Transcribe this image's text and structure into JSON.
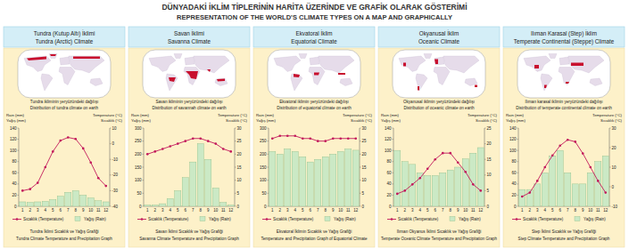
{
  "header": {
    "title_tr": "DÜNYADAKİ İKLİM TİPLERİNİN HARİTA ÜZERİNDE VE GRAFİK OLARAK GÖSTERİMİ",
    "title_en": "REPRESENTATION OF THE WORLD'S CLIMATE TYPES ON A MAP AND GRAPHICALLY"
  },
  "panels": [
    {
      "name_tr": "Tundra (Kutup Altı) İklimi",
      "name_en": "Tundra (Arctic) Climate",
      "map_caption_tr": "Tundra ikliminin yeryüzündeki dağılışı",
      "map_caption_en": "Distribution of tundra climate on earth"
    },
    {
      "name_tr": "Savan İklimi",
      "name_en": "Savanna Climate",
      "map_caption_tr": "Savan ikliminin yeryüzündeki dağılışı",
      "map_caption_en": "Distribution of savannah climate on earth"
    },
    {
      "name_tr": "Ekvatoral İklim",
      "name_en": "Equatorial Climate",
      "map_caption_tr": "Ekvatoral iklimin yeryüzündeki dağılışı",
      "map_caption_en": "Distribution of equatorial climate on earth"
    },
    {
      "name_tr": "Okyanusal İklim",
      "name_en": "Oceanic Climate",
      "map_caption_tr": "Okyanusal iklimin yeryüzündeki dağılışı",
      "map_caption_en": "Distribution of oceanic climate on earth"
    },
    {
      "name_tr": "Ilıman Karasal (Step) İklim",
      "name_en": "Temperate Continental (Steppe) Climate",
      "map_caption_tr": "Ilıman karasal iklimin yeryüzündeki dağılışı",
      "map_caption_en": "Distribution of temperate continental climate on earth"
    }
  ],
  "chart_data": [
    {
      "type": "bar",
      "title": "Tundra İklimi Sıcaklık ve Yağış Grafiği",
      "subtitle": "Tundra Climate Temperature and Precipitation Graph",
      "y_label": [
        "Rain (mm)",
        "Yağış (mm)"
      ],
      "y2_label": [
        "Temperature (°C)",
        "Sıcaklık (°C)"
      ],
      "categories": [
        "1",
        "2",
        "3",
        "4",
        "5",
        "6",
        "7",
        "8",
        "9",
        "10",
        "11",
        "12"
      ],
      "ylim": [
        0,
        140
      ],
      "yticks": [
        0,
        20,
        40,
        60,
        80,
        100,
        120,
        140
      ],
      "y2lim": [
        -40,
        10
      ],
      "y2ticks": [
        -40,
        -30,
        -20,
        -10,
        0,
        10
      ],
      "legend": "bottom",
      "series": [
        {
          "name": "Sıcaklık (Temperature)",
          "type": "line",
          "axis": "y2",
          "color": "#c2185b",
          "marker": "circle",
          "values": [
            -30,
            -29,
            -25,
            -15,
            -5,
            2,
            4,
            3,
            -3,
            -12,
            -22,
            -27
          ]
        },
        {
          "name": "Yağış (Rain)",
          "type": "bar",
          "color": "#cbe9c5",
          "values": [
            8,
            7,
            8,
            9,
            12,
            18,
            25,
            28,
            20,
            15,
            10,
            8
          ]
        }
      ]
    },
    {
      "type": "bar",
      "title": "Savan İklimi Sıcaklık ve Yağış Grafiği",
      "subtitle": "Savanna Climate Temperature and Precipitation Graph",
      "y_label": [
        "Rain (mm)",
        "Yağış (mm)"
      ],
      "y2_label": [
        "Temperature (°C)",
        "Sıcaklık (°C)"
      ],
      "categories": [
        "1",
        "2",
        "3",
        "4",
        "5",
        "6",
        "7",
        "8",
        "9",
        "10",
        "11",
        "12"
      ],
      "ylim": [
        0,
        300
      ],
      "yticks": [
        0,
        50,
        100,
        150,
        200,
        250,
        300
      ],
      "y2lim": [
        0,
        30
      ],
      "y2ticks": [
        0,
        5,
        10,
        15,
        20,
        25,
        30
      ],
      "legend": "bottom",
      "series": [
        {
          "name": "Sıcaklık (Temperature)",
          "type": "line",
          "axis": "y2",
          "color": "#c2185b",
          "marker": "circle",
          "values": [
            20,
            21,
            22,
            23,
            24,
            25,
            26,
            26,
            25,
            24,
            22,
            21
          ]
        },
        {
          "name": "Yağış (Rain)",
          "type": "bar",
          "color": "#cbe9c5",
          "values": [
            5,
            5,
            10,
            30,
            60,
            110,
            170,
            240,
            180,
            70,
            15,
            5
          ]
        }
      ]
    },
    {
      "type": "bar",
      "title": "Ekvatoral İklimin Sıcaklık ve Yağış Grafiği",
      "subtitle": "Temperature and Precipitation Graph of Equatorial Climate",
      "y_label": [
        "Rain (mm)",
        "Yağış (mm)"
      ],
      "y2_label": [
        "Temperature (°C)",
        "Sıcaklık (°C)"
      ],
      "categories": [
        "1",
        "2",
        "3",
        "4",
        "5",
        "6",
        "7",
        "8",
        "9",
        "10",
        "11",
        "12"
      ],
      "ylim": [
        0,
        300
      ],
      "yticks": [
        0,
        50,
        100,
        150,
        200,
        250,
        300
      ],
      "y2lim": [
        0,
        30
      ],
      "y2ticks": [
        0,
        5,
        10,
        15,
        20,
        25,
        30
      ],
      "legend": "bottom",
      "series": [
        {
          "name": "Sıcaklık (Temperature)",
          "type": "line",
          "axis": "y2",
          "color": "#c2185b",
          "marker": "circle",
          "values": [
            26,
            27,
            27,
            27,
            26,
            26,
            25,
            25,
            26,
            26,
            26,
            26
          ]
        },
        {
          "name": "Yağış (Rain)",
          "type": "bar",
          "color": "#cbe9c5",
          "values": [
            210,
            200,
            220,
            210,
            190,
            170,
            180,
            190,
            200,
            210,
            220,
            215
          ]
        }
      ]
    },
    {
      "type": "bar",
      "title": "Ilıman Okyanus İklimi Sıcaklık ve Yağış Grafiği",
      "subtitle": "Temperate Oceanic Climate Temperature and Precipitation Graph",
      "y_label": [
        "Rain (mm)",
        "Yağış (mm)"
      ],
      "y2_label": [
        "Temperature (°C)",
        "Sıcaklık (°C)"
      ],
      "categories": [
        "1",
        "2",
        "3",
        "4",
        "5",
        "6",
        "7",
        "8",
        "9",
        "10",
        "11",
        "12"
      ],
      "ylim": [
        0,
        140
      ],
      "yticks": [
        0,
        20,
        40,
        60,
        80,
        100,
        120,
        140
      ],
      "y2lim": [
        0,
        25
      ],
      "y2ticks": [
        0,
        5,
        10,
        15,
        20,
        25
      ],
      "legend": "bottom",
      "series": [
        {
          "name": "Sıcaklık (Temperature)",
          "type": "line",
          "axis": "y2",
          "color": "#c2185b",
          "marker": "circle",
          "values": [
            4,
            5,
            7,
            9,
            12,
            15,
            17,
            17,
            14,
            11,
            7,
            5
          ]
        },
        {
          "name": "Yağış (Rain)",
          "type": "bar",
          "color": "#cbe9c5",
          "values": [
            100,
            80,
            75,
            60,
            55,
            55,
            60,
            65,
            70,
            85,
            95,
            105
          ]
        }
      ]
    },
    {
      "type": "bar",
      "title": "Step İklimi Sıcaklık ve Yağış Grafiği",
      "subtitle": "Step Climate Temperature and Precipitation Graph",
      "y_label": [
        "Rain (mm)",
        "Yağış (mm)"
      ],
      "y2_label": [
        "Temperature (°C)",
        "Sıcaklık (°C)"
      ],
      "categories": [
        "1",
        "2",
        "3",
        "4",
        "5",
        "6",
        "7",
        "8",
        "9",
        "10",
        "11",
        "12"
      ],
      "ylim": [
        0,
        140
      ],
      "yticks": [
        0,
        20,
        40,
        60,
        80,
        100,
        120,
        140
      ],
      "y2lim": [
        -10,
        30
      ],
      "y2ticks": [
        -10,
        0,
        10,
        20,
        30
      ],
      "legend": "bottom",
      "series": [
        {
          "name": "Sıcaklık (Temperature)",
          "type": "line",
          "axis": "y2",
          "color": "#c2185b",
          "marker": "circle",
          "values": [
            -5,
            -3,
            3,
            10,
            16,
            21,
            24,
            23,
            17,
            10,
            3,
            -3
          ]
        },
        {
          "name": "Yağış (Rain)",
          "type": "bar",
          "color": "#cbe9c5",
          "values": [
            30,
            30,
            40,
            60,
            90,
            100,
            60,
            40,
            40,
            60,
            80,
            90
          ]
        }
      ]
    }
  ]
}
